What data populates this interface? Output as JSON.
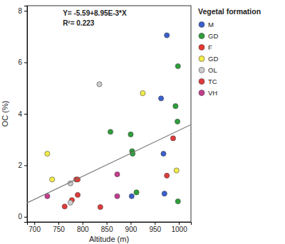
{
  "chart_data": {
    "type": "scatter",
    "xlabel": "Altitude (m)",
    "ylabel": "OC (%)",
    "annotations": [
      "Y= -5.59+8.95E-3*X",
      "R²= 0.223"
    ],
    "legend_title": "Vegetal formation",
    "xlim": [
      685,
      1025
    ],
    "ylim": [
      -0.2,
      8.2
    ],
    "xticks": [
      700,
      750,
      800,
      850,
      900,
      950,
      1000
    ],
    "yticks": [
      0,
      2,
      4,
      6,
      8
    ],
    "grid": false,
    "legend": "right",
    "marker": "circle",
    "series": [
      {
        "name": "M",
        "color": "#3a5fcd",
        "x": [
          975,
          963,
          968,
          970,
          902
        ],
        "values": [
          7.05,
          4.6,
          2.45,
          0.9,
          0.8
        ]
      },
      {
        "name": "GD",
        "color": "#2e9e3a",
        "x": [
          998,
          993,
          997,
          858,
          900,
          903,
          904,
          912,
          998
        ],
        "values": [
          5.85,
          4.3,
          3.7,
          3.3,
          3.2,
          2.55,
          2.45,
          0.95,
          0.6
        ]
      },
      {
        "name": "F",
        "color": "#e8382f",
        "x": [
          787,
          790,
          778
        ],
        "values": [
          1.45,
          1.45,
          0.65
        ]
      },
      {
        "name": "GD",
        "color": "#f2ec4a",
        "x": [
          925,
          727,
          737,
          995
        ],
        "values": [
          4.8,
          2.45,
          1.45,
          1.8
        ]
      },
      {
        "name": "OL",
        "color": "#cccccc",
        "x": [
          835,
          775,
          775
        ],
        "values": [
          5.15,
          1.3,
          0.55
        ]
      },
      {
        "name": "TC",
        "color": "#e03a3a",
        "x": [
          763,
          790,
          837,
          975,
          988
        ],
        "values": [
          0.4,
          0.85,
          0.38,
          1.6,
          3.05
        ]
      },
      {
        "name": "VH",
        "color": "#c43c8e",
        "x": [
          727,
          872,
          872
        ],
        "values": [
          0.8,
          1.65,
          0.8
        ]
      },
      {
        "type": "line",
        "color": "#777777",
        "x": [
          685,
          1025
        ],
        "values": [
          0.54,
          3.58
        ]
      }
    ]
  }
}
